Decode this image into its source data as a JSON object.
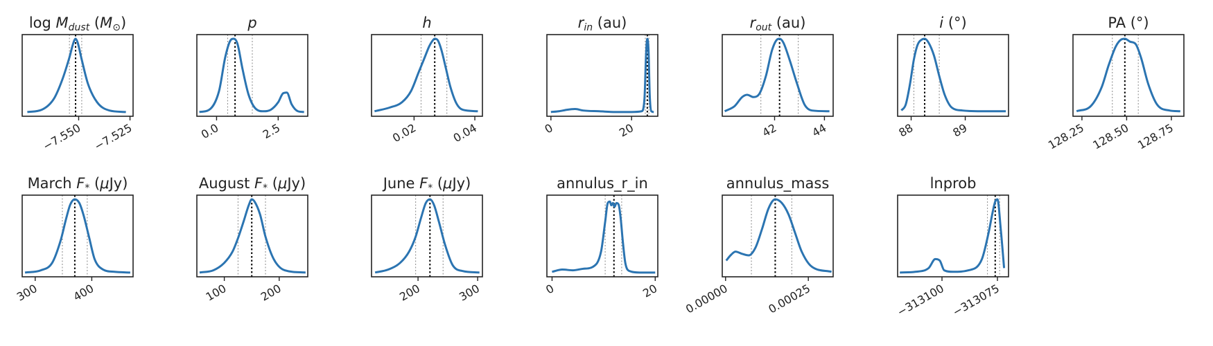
{
  "chart_data": [
    {
      "type": "line",
      "title": "log M_dust (M⊙)",
      "title_parts": [
        {
          "t": "log "
        },
        {
          "t": "M",
          "i": true
        },
        {
          "t": "dust",
          "sub": true,
          "i": true
        },
        {
          "t": " ("
        },
        {
          "t": "M",
          "i": true
        },
        {
          "t": "⊙",
          "sub": true
        },
        {
          "t": ")"
        }
      ],
      "xlim": [
        -7.5775,
        -7.5235
      ],
      "xticks": [
        {
          "v": -7.55,
          "label": "−7.550"
        },
        {
          "v": -7.525,
          "label": "−7.525"
        }
      ],
      "median": -7.5515,
      "quantiles": [
        -7.5545,
        -7.5485
      ],
      "x": [
        -7.575,
        -7.568,
        -7.562,
        -7.558,
        -7.5545,
        -7.5525,
        -7.5515,
        -7.5505,
        -7.5485,
        -7.5455,
        -7.541,
        -7.535,
        -7.527
      ],
      "y": [
        0.02,
        0.05,
        0.2,
        0.45,
        0.75,
        0.95,
        1.0,
        0.95,
        0.72,
        0.4,
        0.15,
        0.04,
        0.02
      ]
    },
    {
      "type": "line",
      "title": "p",
      "title_parts": [
        {
          "t": "p",
          "i": true
        }
      ],
      "xlim": [
        -0.8,
        3.7
      ],
      "xticks": [
        {
          "v": 0.0,
          "label": "0.0"
        },
        {
          "v": 2.5,
          "label": "2.5"
        }
      ],
      "median": 0.75,
      "quantiles": [
        0.45,
        1.45
      ],
      "x": [
        -0.7,
        -0.3,
        0.1,
        0.35,
        0.55,
        0.7,
        0.85,
        1.05,
        1.3,
        1.6,
        1.9,
        2.2,
        2.5,
        2.7,
        2.85,
        3.05,
        3.3,
        3.55
      ],
      "y": [
        0.02,
        0.05,
        0.3,
        0.75,
        0.97,
        1.0,
        0.93,
        0.6,
        0.25,
        0.06,
        0.03,
        0.05,
        0.15,
        0.27,
        0.28,
        0.12,
        0.03,
        0.02
      ]
    },
    {
      "type": "line",
      "title": "h",
      "title_parts": [
        {
          "t": "h",
          "i": true
        }
      ],
      "xlim": [
        0.006,
        0.0425
      ],
      "xticks": [
        {
          "v": 0.02,
          "label": "0.02"
        },
        {
          "v": 0.04,
          "label": "0.04"
        }
      ],
      "median": 0.0268,
      "quantiles": [
        0.0223,
        0.0308
      ],
      "x": [
        0.007,
        0.012,
        0.016,
        0.019,
        0.0215,
        0.0235,
        0.025,
        0.0262,
        0.0268,
        0.0278,
        0.029,
        0.0305,
        0.032,
        0.034,
        0.036,
        0.041
      ],
      "y": [
        0.03,
        0.08,
        0.15,
        0.3,
        0.55,
        0.75,
        0.9,
        0.98,
        1.0,
        0.98,
        0.85,
        0.6,
        0.35,
        0.13,
        0.05,
        0.03
      ]
    },
    {
      "type": "line",
      "title": "r_in (au)",
      "title_parts": [
        {
          "t": "r",
          "i": true
        },
        {
          "t": "in",
          "sub": true,
          "i": true
        },
        {
          "t": " (au)"
        }
      ],
      "xlim": [
        -1,
        26.5
      ],
      "xticks": [
        {
          "v": 0,
          "label": "0"
        },
        {
          "v": 20,
          "label": "20"
        }
      ],
      "median": 23.9,
      "quantiles": [
        23.4,
        24.3
      ],
      "x": [
        0,
        2,
        4,
        6,
        8,
        12,
        16,
        20,
        22.5,
        23.2,
        23.6,
        23.9,
        24.2,
        24.5,
        24.9,
        25.5
      ],
      "y": [
        0.02,
        0.03,
        0.05,
        0.06,
        0.04,
        0.03,
        0.02,
        0.02,
        0.03,
        0.2,
        0.8,
        1.0,
        0.85,
        0.25,
        0.03,
        0.02
      ]
    },
    {
      "type": "line",
      "title": "r_out (au)",
      "title_parts": [
        {
          "t": "r",
          "i": true
        },
        {
          "t": "out",
          "sub": true,
          "i": true
        },
        {
          "t": " (au)"
        }
      ],
      "xlim": [
        39.9,
        44.35
      ],
      "xticks": [
        {
          "v": 42,
          "label": "42"
        },
        {
          "v": 44,
          "label": "44"
        }
      ],
      "median": 42.2,
      "quantiles": [
        41.45,
        42.95
      ],
      "x": [
        40.0,
        40.4,
        40.7,
        40.9,
        41.15,
        41.4,
        41.65,
        41.9,
        42.1,
        42.2,
        42.35,
        42.6,
        42.9,
        43.2,
        43.5,
        44.2
      ],
      "y": [
        0.03,
        0.1,
        0.22,
        0.25,
        0.22,
        0.27,
        0.5,
        0.85,
        0.99,
        1.0,
        0.95,
        0.72,
        0.4,
        0.12,
        0.04,
        0.03
      ]
    },
    {
      "type": "line",
      "title": "i (°)",
      "title_parts": [
        {
          "t": "i",
          "i": true
        },
        {
          "t": " (°)"
        }
      ],
      "xlim": [
        87.75,
        89.8
      ],
      "xticks": [
        {
          "v": 88,
          "label": "88"
        },
        {
          "v": 89,
          "label": "89"
        }
      ],
      "median": 88.25,
      "quantiles": [
        88.05,
        88.52
      ],
      "x": [
        87.82,
        87.9,
        87.98,
        88.05,
        88.12,
        88.2,
        88.25,
        88.32,
        88.42,
        88.52,
        88.62,
        88.75,
        88.95,
        89.3,
        89.75
      ],
      "y": [
        0.04,
        0.12,
        0.4,
        0.72,
        0.92,
        0.99,
        1.0,
        0.95,
        0.78,
        0.5,
        0.25,
        0.08,
        0.04,
        0.03,
        0.03
      ]
    },
    {
      "type": "line",
      "title": "PA (°)",
      "title_parts": [
        {
          "t": "PA  (°)"
        }
      ],
      "xlim": [
        128.2,
        128.82
      ],
      "xticks": [
        {
          "v": 128.25,
          "label": "128.25"
        },
        {
          "v": 128.5,
          "label": "128.50"
        },
        {
          "v": 128.75,
          "label": "128.75"
        }
      ],
      "median": 128.49,
      "quantiles": [
        128.42,
        128.565
      ],
      "x": [
        128.22,
        128.3,
        128.36,
        128.4,
        128.44,
        128.47,
        128.49,
        128.52,
        128.55,
        128.58,
        128.62,
        128.67,
        128.74,
        128.8
      ],
      "y": [
        0.03,
        0.1,
        0.35,
        0.65,
        0.9,
        0.99,
        1.0,
        0.96,
        0.93,
        0.75,
        0.4,
        0.12,
        0.04,
        0.03
      ]
    },
    {
      "type": "line",
      "title": "March F* (μJy)",
      "title_parts": [
        {
          "t": "March "
        },
        {
          "t": "F",
          "i": true
        },
        {
          "t": "*",
          "sub": true
        },
        {
          "t": " ("
        },
        {
          "t": "μ",
          "i": true
        },
        {
          "t": "Jy)"
        }
      ],
      "xlim": [
        277,
        473
      ],
      "xticks": [
        {
          "v": 300,
          "label": "300"
        },
        {
          "v": 400,
          "label": "400"
        }
      ],
      "median": 370,
      "quantiles": [
        348,
        392
      ],
      "x": [
        282,
        310,
        330,
        345,
        355,
        362,
        370,
        378,
        385,
        395,
        405,
        420,
        440,
        468
      ],
      "y": [
        0.02,
        0.05,
        0.15,
        0.45,
        0.75,
        0.93,
        1.0,
        0.95,
        0.8,
        0.5,
        0.2,
        0.06,
        0.03,
        0.02
      ]
    },
    {
      "type": "line",
      "title": "August F* (μJy)",
      "title_parts": [
        {
          "t": "August "
        },
        {
          "t": "F",
          "i": true
        },
        {
          "t": "*",
          "sub": true
        },
        {
          "t": " ("
        },
        {
          "t": "μ",
          "i": true
        },
        {
          "t": "Jy)"
        }
      ],
      "xlim": [
        50,
        252
      ],
      "xticks": [
        {
          "v": 100,
          "label": "100"
        },
        {
          "v": 200,
          "label": "200"
        }
      ],
      "median": 150,
      "quantiles": [
        125,
        175
      ],
      "x": [
        55,
        80,
        100,
        115,
        125,
        135,
        145,
        150,
        155,
        165,
        175,
        190,
        210,
        248
      ],
      "y": [
        0.02,
        0.05,
        0.15,
        0.3,
        0.48,
        0.7,
        0.93,
        1.0,
        0.97,
        0.8,
        0.5,
        0.2,
        0.05,
        0.02
      ]
    },
    {
      "type": "line",
      "title": "June F* (μJy)",
      "title_parts": [
        {
          "t": "June "
        },
        {
          "t": "F",
          "i": true
        },
        {
          "t": "*",
          "sub": true
        },
        {
          "t": " ("
        },
        {
          "t": "μ",
          "i": true
        },
        {
          "t": "Jy)"
        }
      ],
      "xlim": [
        122,
        308
      ],
      "xticks": [
        {
          "v": 200,
          "label": "200"
        },
        {
          "v": 300,
          "label": "300"
        }
      ],
      "median": 220,
      "quantiles": [
        196,
        242
      ],
      "x": [
        128,
        150,
        170,
        185,
        196,
        205,
        213,
        220,
        227,
        235,
        245,
        258,
        275,
        303
      ],
      "y": [
        0.02,
        0.06,
        0.15,
        0.3,
        0.5,
        0.75,
        0.95,
        1.0,
        0.92,
        0.7,
        0.4,
        0.12,
        0.04,
        0.02
      ]
    },
    {
      "type": "line",
      "title": "annulus_r_in",
      "title_parts": [
        {
          "t": "annulus_r_in"
        }
      ],
      "xlim": [
        -1,
        20.5
      ],
      "xticks": [
        {
          "v": 0,
          "label": "0"
        },
        {
          "v": 20,
          "label": "20"
        }
      ],
      "median": 12.0,
      "quantiles": [
        10.3,
        13.5
      ],
      "x": [
        0,
        2,
        4,
        6,
        8,
        9.5,
        10.3,
        10.8,
        11.2,
        11.5,
        11.8,
        12.1,
        12.5,
        12.9,
        13.3,
        13.7,
        14.2,
        15,
        17,
        20
      ],
      "y": [
        0.03,
        0.06,
        0.05,
        0.07,
        0.1,
        0.3,
        0.7,
        0.95,
        0.97,
        0.92,
        0.95,
        0.9,
        0.95,
        0.93,
        0.75,
        0.45,
        0.15,
        0.04,
        0.02,
        0.02
      ]
    },
    {
      "type": "line",
      "title": "annulus_mass",
      "title_parts": [
        {
          "t": "annulus_mass"
        }
      ],
      "xlim": [
        -1e-05,
        0.000325
      ],
      "xticks": [
        {
          "v": 0,
          "label": "0.00000"
        },
        {
          "v": 0.00025,
          "label": "0.00025"
        }
      ],
      "median": 0.00015,
      "quantiles": [
        7.8e-05,
        0.0002
      ],
      "x": [
        2e-06,
        1.5e-05,
        3e-05,
        5e-05,
        7e-05,
        9e-05,
        0.00011,
        0.00013,
        0.00015,
        0.00017,
        0.00019,
        0.00021,
        0.00023,
        0.00026,
        0.00032
      ],
      "y": [
        0.18,
        0.25,
        0.3,
        0.27,
        0.25,
        0.35,
        0.6,
        0.88,
        1.0,
        0.95,
        0.8,
        0.55,
        0.3,
        0.1,
        0.03
      ]
    },
    {
      "type": "line",
      "title": "lnprob",
      "title_parts": [
        {
          "t": "lnprob"
        }
      ],
      "xlim": [
        -313120,
        -313070
      ],
      "xticks": [
        {
          "v": -313100,
          "label": "−313100"
        },
        {
          "v": -313075,
          "label": "−313075"
        }
      ],
      "median": -313076,
      "quantiles": [
        -313079.5,
        -313074
      ],
      "x": [
        -313119,
        -313112,
        -313106,
        -313103,
        -313101,
        -313099,
        -313095,
        -313088,
        -313082,
        -313079,
        -313077,
        -313076,
        -313075,
        -313073.5,
        -313072
      ],
      "y": [
        0.02,
        0.03,
        0.08,
        0.2,
        0.18,
        0.05,
        0.03,
        0.05,
        0.2,
        0.55,
        0.85,
        0.97,
        1.0,
        0.6,
        0.08
      ]
    }
  ]
}
